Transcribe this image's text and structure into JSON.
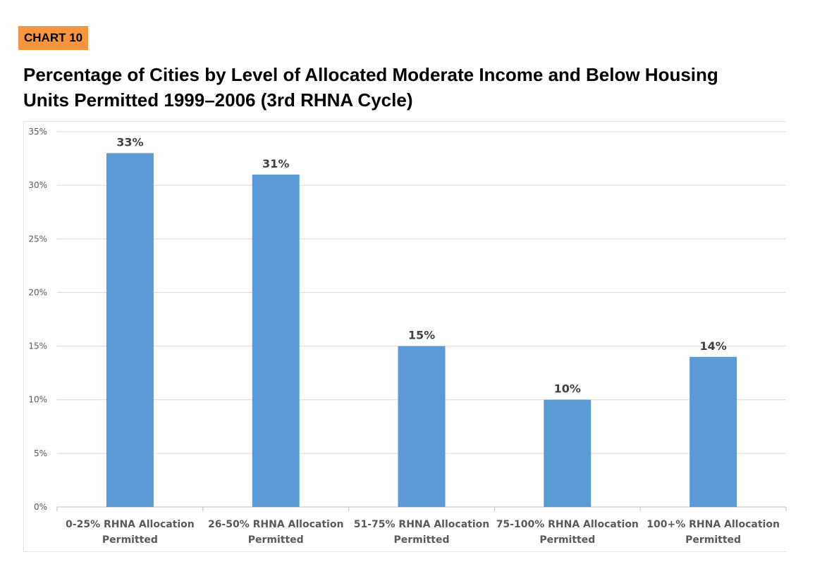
{
  "badge": "CHART 10",
  "title_line1": "Percentage of Cities by Level of Allocated Moderate Income and Below Housing",
  "title_line2": "Units Permitted 1999–2006 (3rd RHNA Cycle)",
  "colors": {
    "bar": "#5b9bd5",
    "badge": "#f7943d",
    "grid": "#d9d9d9"
  },
  "chart_data": {
    "type": "bar",
    "title": "Percentage of Cities by Level of Allocated Moderate Income and Below Housing Units Permitted 1999–2006 (3rd RHNA Cycle)",
    "xlabel": "",
    "ylabel": "",
    "ylim": [
      0,
      35
    ],
    "yticks": [
      0,
      5,
      10,
      15,
      20,
      25,
      30,
      35
    ],
    "ytick_labels": [
      "0%",
      "5%",
      "10%",
      "15%",
      "20%",
      "25%",
      "30%",
      "35%"
    ],
    "grid": true,
    "categories": [
      [
        "0-25% RHNA Allocation",
        "Permitted"
      ],
      [
        "26-50% RHNA Allocation",
        "Permitted"
      ],
      [
        "51-75% RHNA Allocation",
        "Permitted"
      ],
      [
        "75-100% RHNA Allocation",
        "Permitted"
      ],
      [
        "100+% RHNA Allocation",
        "Permitted"
      ]
    ],
    "values": [
      33,
      31,
      15,
      10,
      14
    ],
    "data_labels": [
      "33%",
      "31%",
      "15%",
      "10%",
      "14%"
    ]
  }
}
